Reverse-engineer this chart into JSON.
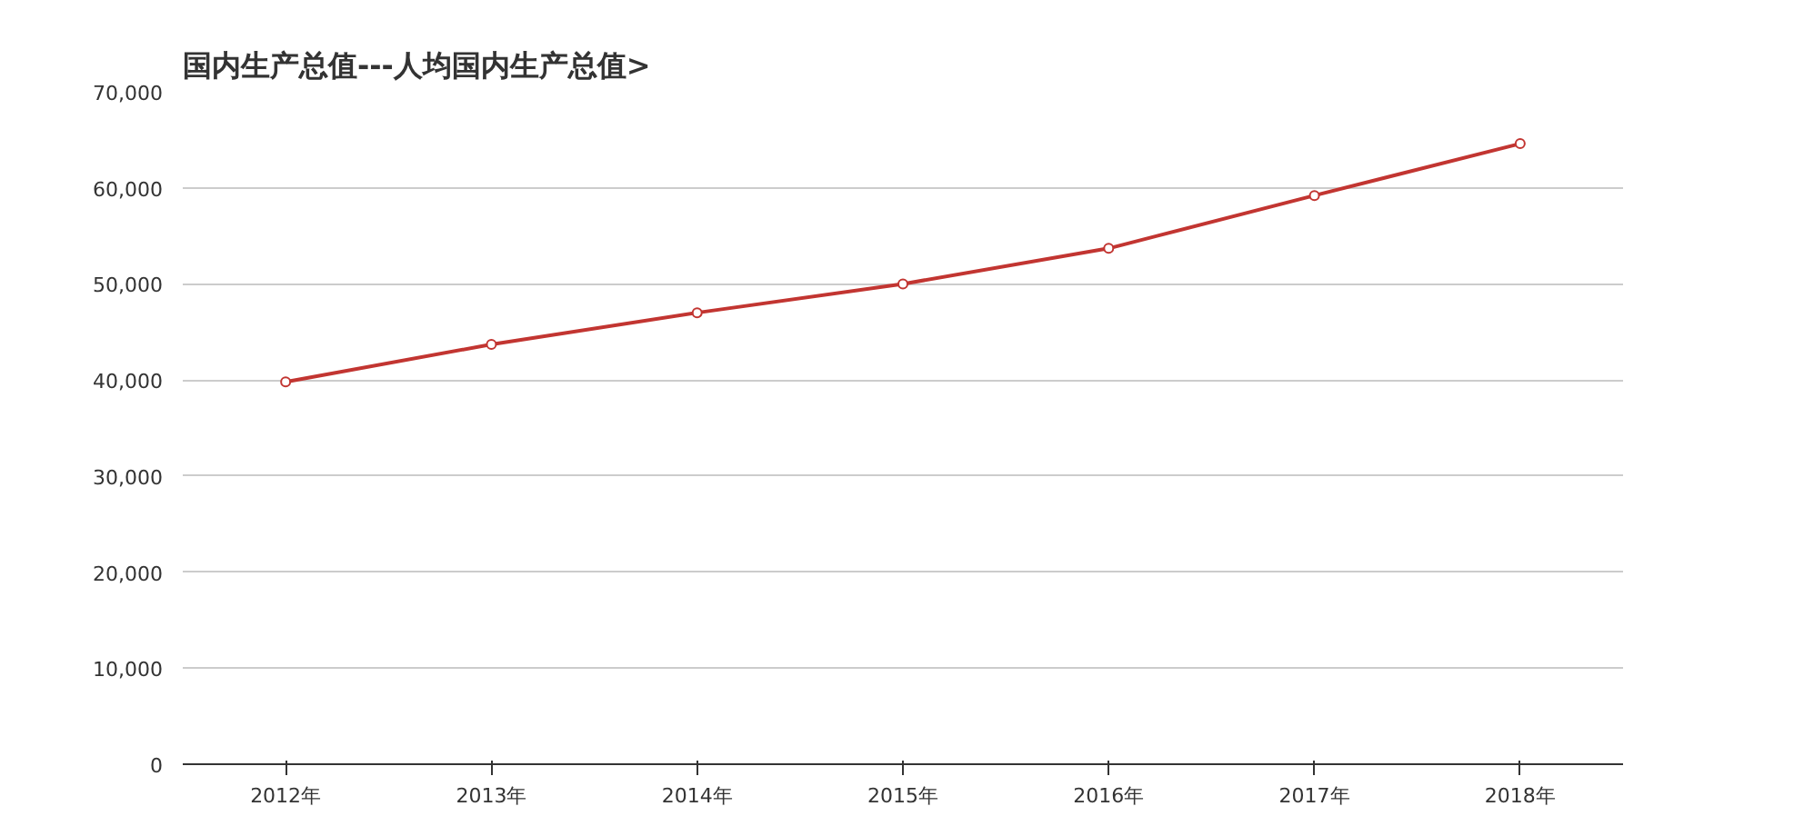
{
  "chart_data": {
    "type": "line",
    "title": "国内生产总值---人均国内生产总值>",
    "categories": [
      "2012年",
      "2013年",
      "2014年",
      "2015年",
      "2016年",
      "2017年",
      "2018年"
    ],
    "series": [
      {
        "color": "#c23531",
        "values": [
          39800,
          43700,
          47000,
          50000,
          53700,
          59200,
          64600
        ]
      }
    ],
    "ylim": [
      0,
      70000
    ],
    "yticks": [
      {
        "value": 0,
        "label": "0"
      },
      {
        "value": 10000,
        "label": "10,000"
      },
      {
        "value": 20000,
        "label": "20,000"
      },
      {
        "value": 30000,
        "label": "30,000"
      },
      {
        "value": 40000,
        "label": "40,000"
      },
      {
        "value": 50000,
        "label": "50,000"
      },
      {
        "value": 60000,
        "label": "60,000"
      },
      {
        "value": 70000,
        "label": "70,000"
      }
    ],
    "grid": "y",
    "marker": "circle",
    "line_style": "solid"
  }
}
